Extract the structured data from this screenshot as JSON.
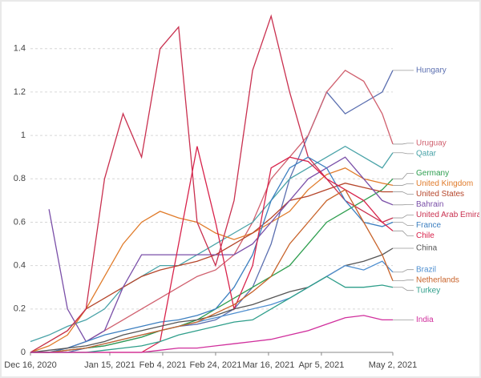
{
  "chart_data": {
    "type": "line",
    "x": [
      "2020-12-16",
      "2020-12-23",
      "2020-12-30",
      "2021-01-06",
      "2021-01-13",
      "2021-01-20",
      "2021-01-27",
      "2021-02-03",
      "2021-02-10",
      "2021-02-17",
      "2021-02-24",
      "2021-03-03",
      "2021-03-10",
      "2021-03-17",
      "2021-03-24",
      "2021-03-31",
      "2021-04-07",
      "2021-04-14",
      "2021-04-21",
      "2021-04-28",
      "2021-05-02"
    ],
    "xlim": [
      "2020-12-16",
      "2021-05-02"
    ],
    "xticks": [
      {
        "value": "2020-12-16",
        "label": "Dec 16, 2020"
      },
      {
        "value": "2021-01-15",
        "label": "Jan 15, 2021"
      },
      {
        "value": "2021-02-04",
        "label": "Feb 4, 2021"
      },
      {
        "value": "2021-02-24",
        "label": "Feb 24, 2021"
      },
      {
        "value": "2021-03-16",
        "label": "Mar 16, 2021"
      },
      {
        "value": "2021-04-05",
        "label": "Apr 5, 2021"
      },
      {
        "value": "2021-05-02",
        "label": "May 2, 2021"
      }
    ],
    "ylim": [
      0,
      1.58
    ],
    "yticks": [
      0,
      0.2,
      0.4,
      0.6,
      0.8,
      1,
      1.2,
      1.4
    ],
    "grid": true,
    "series": [
      {
        "name": "Hungary",
        "color": "#5b6fb0",
        "values": [
          0,
          0,
          0,
          0.02,
          0.03,
          0.05,
          0.07,
          0.1,
          0.12,
          0.13,
          0.15,
          0.2,
          0.3,
          0.5,
          0.8,
          1.0,
          1.2,
          1.1,
          1.15,
          1.2,
          1.3
        ]
      },
      {
        "name": "Uruguay",
        "color": "#d0606e",
        "values": [
          0,
          0,
          0.02,
          0.05,
          0.1,
          0.15,
          0.2,
          0.25,
          0.3,
          0.35,
          0.38,
          0.45,
          0.6,
          0.8,
          0.9,
          1.0,
          1.2,
          1.3,
          1.25,
          1.1,
          0.96
        ]
      },
      {
        "name": "Qatar",
        "color": "#4aa3a8",
        "values": [
          0.05,
          0.08,
          0.12,
          0.15,
          0.2,
          0.3,
          0.35,
          0.4,
          0.4,
          0.45,
          0.5,
          0.55,
          0.6,
          0.7,
          0.8,
          0.85,
          0.9,
          0.95,
          0.9,
          0.85,
          0.92
        ]
      },
      {
        "name": "Germany",
        "color": "#2e9e4f",
        "values": [
          0,
          0,
          0.01,
          0.02,
          0.03,
          0.05,
          0.07,
          0.1,
          0.12,
          0.15,
          0.2,
          0.25,
          0.3,
          0.35,
          0.4,
          0.5,
          0.6,
          0.65,
          0.7,
          0.75,
          0.8
        ]
      },
      {
        "name": "United Kingdom",
        "color": "#e07b2a",
        "values": [
          0,
          0.03,
          0.08,
          0.2,
          0.35,
          0.5,
          0.6,
          0.65,
          0.62,
          0.6,
          0.55,
          0.52,
          0.55,
          0.6,
          0.65,
          0.75,
          0.82,
          0.85,
          0.8,
          0.78,
          0.77
        ]
      },
      {
        "name": "United States",
        "color": "#b5452a",
        "values": [
          0,
          0.05,
          0.1,
          0.2,
          0.25,
          0.3,
          0.35,
          0.38,
          0.4,
          0.42,
          0.45,
          0.5,
          0.55,
          0.62,
          0.7,
          0.72,
          0.75,
          0.78,
          0.76,
          0.74,
          0.74
        ]
      },
      {
        "name": "Bahrain",
        "color": "#7a4fa8",
        "values": [
          null,
          0.66,
          0.2,
          0.05,
          0.1,
          0.3,
          0.45,
          0.45,
          0.45,
          0.45,
          0.45,
          0.45,
          0.5,
          0.6,
          0.7,
          0.8,
          0.85,
          0.9,
          0.8,
          0.7,
          0.68
        ]
      },
      {
        "name": "United Arab Emirates",
        "color": "#c9304f",
        "values": [
          0,
          0.05,
          0.1,
          0.2,
          0.8,
          1.1,
          0.9,
          1.4,
          1.5,
          0.6,
          0.4,
          0.7,
          1.3,
          1.55,
          1.2,
          0.9,
          0.8,
          0.7,
          0.65,
          0.6,
          0.62
        ]
      },
      {
        "name": "France",
        "color": "#3c7fc0",
        "values": [
          0,
          0,
          0.02,
          0.05,
          0.08,
          0.1,
          0.12,
          0.14,
          0.15,
          0.17,
          0.2,
          0.3,
          0.45,
          0.7,
          0.85,
          0.9,
          0.85,
          0.7,
          0.6,
          0.58,
          0.6
        ]
      },
      {
        "name": "Chile",
        "color": "#d8234b",
        "values": [
          0,
          0,
          0,
          0,
          0,
          0,
          0,
          0.05,
          0.5,
          0.95,
          0.6,
          0.2,
          0.4,
          0.85,
          0.9,
          0.88,
          0.8,
          0.75,
          0.7,
          0.6,
          0.56
        ]
      },
      {
        "name": "China",
        "color": "#555555",
        "values": [
          0,
          0.01,
          0.02,
          0.03,
          0.05,
          0.08,
          0.1,
          0.12,
          0.14,
          0.15,
          0.17,
          0.2,
          0.22,
          0.25,
          0.28,
          0.3,
          0.35,
          0.4,
          0.42,
          0.45,
          0.48
        ]
      },
      {
        "name": "Brazil",
        "color": "#4f8fd0",
        "values": [
          0,
          0,
          0.01,
          0.02,
          0.04,
          0.06,
          0.08,
          0.1,
          0.12,
          0.14,
          0.16,
          0.18,
          0.2,
          0.22,
          0.25,
          0.3,
          0.35,
          0.4,
          0.38,
          0.42,
          0.37
        ]
      },
      {
        "name": "Netherlands",
        "color": "#c8632a",
        "values": [
          0,
          0,
          0.01,
          0.02,
          0.04,
          0.06,
          0.08,
          0.1,
          0.12,
          0.14,
          0.18,
          0.22,
          0.28,
          0.35,
          0.5,
          0.6,
          0.7,
          0.75,
          0.6,
          0.45,
          0.33
        ]
      },
      {
        "name": "Turkey",
        "color": "#2e9e8a",
        "values": [
          0,
          0,
          0,
          0,
          0.01,
          0.02,
          0.03,
          0.05,
          0.08,
          0.1,
          0.12,
          0.14,
          0.15,
          0.2,
          0.25,
          0.3,
          0.35,
          0.3,
          0.3,
          0.31,
          0.3
        ]
      },
      {
        "name": "India",
        "color": "#d02e9c",
        "values": [
          0,
          0,
          0,
          0,
          0,
          0,
          0,
          0.01,
          0.02,
          0.02,
          0.03,
          0.04,
          0.05,
          0.06,
          0.08,
          0.1,
          0.13,
          0.16,
          0.17,
          0.15,
          0.15
        ]
      }
    ]
  }
}
